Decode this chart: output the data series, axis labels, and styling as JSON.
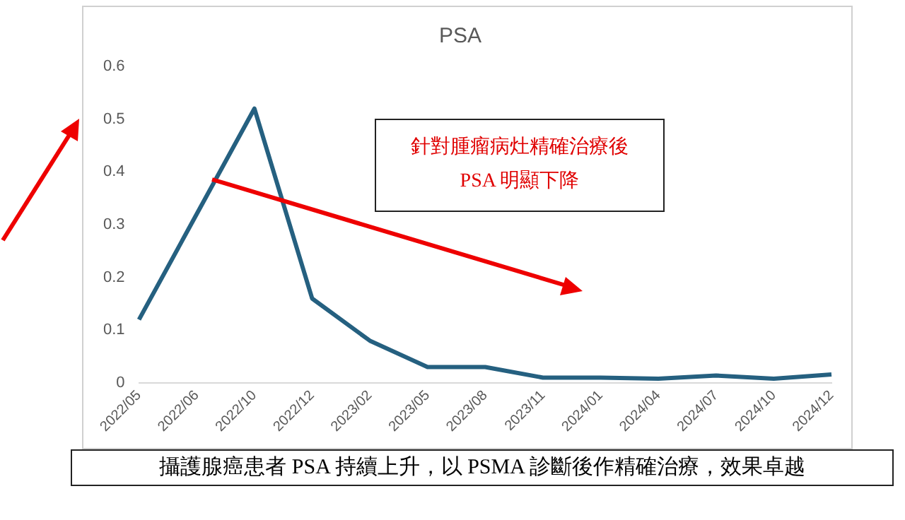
{
  "chart_data": {
    "type": "line",
    "title": "PSA",
    "categories": [
      "2022/05",
      "2022/06",
      "2022/10",
      "2022/12",
      "2023/02",
      "2023/05",
      "2023/08",
      "2023/11",
      "2024/01",
      "2024/04",
      "2024/07",
      "2024/10",
      "2024/12"
    ],
    "series": [
      {
        "color": "#256080",
        "values": [
          0.12,
          0.32,
          0.52,
          0.16,
          0.08,
          0.03,
          0.03,
          0.01,
          0.01,
          0.008,
          0.014,
          0.008,
          0.016
        ]
      }
    ],
    "ylim": [
      0,
      0.6
    ],
    "yticks": [
      0,
      0.1,
      0.2,
      0.3,
      0.4,
      0.5,
      0.6
    ],
    "grid": false,
    "legend": false,
    "marker": "none",
    "line_style": "solid",
    "annotations": [
      "針對腫瘤病灶精確治療後\nPSA 明顯下降",
      "攝護腺癌患者 PSA 持續上升，以 PSMA 診斷後作精確治療，效果卓越"
    ]
  }
}
